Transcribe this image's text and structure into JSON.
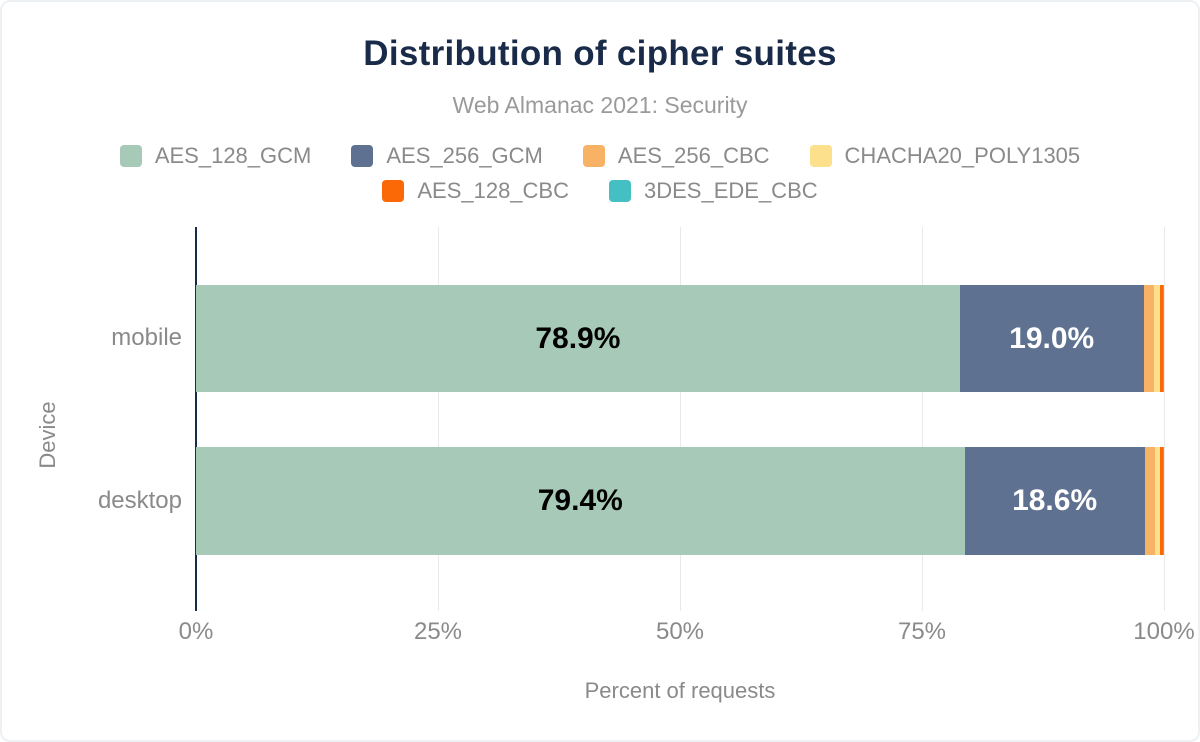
{
  "chart_data": {
    "type": "bar",
    "variant": "horizontal-stacked",
    "title": "Distribution of cipher suites",
    "subtitle": "Web Almanac 2021: Security",
    "xlabel": "Percent of requests",
    "ylabel": "Device",
    "categories": [
      "mobile",
      "desktop"
    ],
    "series": [
      {
        "name": "AES_128_GCM",
        "color": "#a7c9b8",
        "label_color": "#000000",
        "values": [
          78.9,
          79.4
        ],
        "labels": [
          "78.9%",
          "79.4%"
        ]
      },
      {
        "name": "AES_256_GCM",
        "color": "#5f7190",
        "label_color": "#ffffff",
        "values": [
          19.0,
          18.6
        ],
        "labels": [
          "19.0%",
          "18.6%"
        ]
      },
      {
        "name": "AES_256_CBC",
        "color": "#f8b266",
        "label_color": "",
        "values": [
          1.1,
          1.1
        ],
        "labels": [
          "",
          ""
        ]
      },
      {
        "name": "CHACHA20_POLY1305",
        "color": "#fce08c",
        "label_color": "",
        "values": [
          0.6,
          0.5
        ],
        "labels": [
          "",
          ""
        ]
      },
      {
        "name": "AES_128_CBC",
        "color": "#fa6905",
        "label_color": "",
        "values": [
          0.3,
          0.3
        ],
        "labels": [
          "",
          ""
        ]
      },
      {
        "name": "3DES_EDE_CBC",
        "color": "#44bfc4",
        "label_color": "",
        "values": [
          0.1,
          0.1
        ],
        "labels": [
          "",
          ""
        ]
      }
    ],
    "x_ticks": [
      {
        "label": "0%",
        "pos": 0
      },
      {
        "label": "25%",
        "pos": 25
      },
      {
        "label": "50%",
        "pos": 50
      },
      {
        "label": "75%",
        "pos": 75
      },
      {
        "label": "100%",
        "pos": 100
      }
    ],
    "xlim": [
      0,
      100
    ],
    "grid": "vertical",
    "legend_position": "top",
    "colors": {
      "title": "#1a2b49",
      "axis_line": "#1a2b49",
      "text_muted": "#8a8a8a",
      "gridline": "#e9e9e9",
      "background": "#ffffff"
    }
  }
}
